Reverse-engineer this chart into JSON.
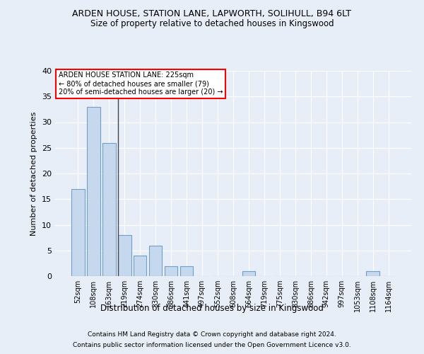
{
  "title1": "ARDEN HOUSE, STATION LANE, LAPWORTH, SOLIHULL, B94 6LT",
  "title2": "Size of property relative to detached houses in Kingswood",
  "xlabel": "Distribution of detached houses by size in Kingswood",
  "ylabel": "Number of detached properties",
  "footnote1": "Contains HM Land Registry data © Crown copyright and database right 2024.",
  "footnote2": "Contains public sector information licensed under the Open Government Licence v3.0.",
  "annotation_title": "ARDEN HOUSE STATION LANE: 225sqm",
  "annotation_line2": "← 80% of detached houses are smaller (79)",
  "annotation_line3": "20% of semi-detached houses are larger (20) →",
  "bar_labels": [
    "52sqm",
    "108sqm",
    "163sqm",
    "219sqm",
    "274sqm",
    "330sqm",
    "386sqm",
    "441sqm",
    "497sqm",
    "552sqm",
    "608sqm",
    "664sqm",
    "719sqm",
    "775sqm",
    "830sqm",
    "886sqm",
    "942sqm",
    "997sqm",
    "1053sqm",
    "1108sqm",
    "1164sqm"
  ],
  "bar_values": [
    17,
    33,
    26,
    8,
    4,
    6,
    2,
    2,
    0,
    0,
    0,
    1,
    0,
    0,
    0,
    0,
    0,
    0,
    0,
    1,
    0
  ],
  "bar_color": "#c5d8ee",
  "bar_edge_color": "#6fa0c8",
  "ylim": [
    0,
    40
  ],
  "yticks": [
    0,
    5,
    10,
    15,
    20,
    25,
    30,
    35,
    40
  ],
  "background_color": "#e8eef8",
  "grid_color": "#ffffff",
  "figsize": [
    6.0,
    5.0
  ],
  "dpi": 100
}
